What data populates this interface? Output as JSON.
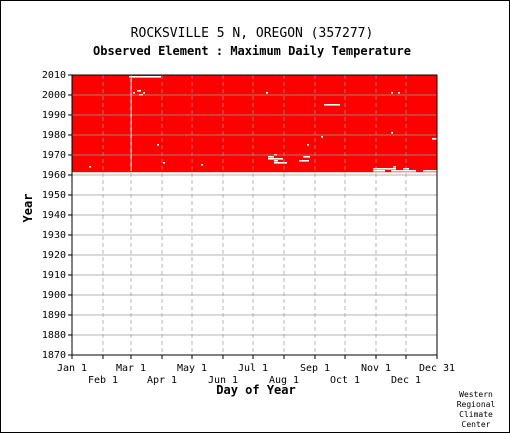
{
  "chart_data": {
    "type": "heatmap",
    "title": "ROCKSVILLE 5 N, OREGON   (357277)",
    "subtitle": "Observed Element : Maximum Daily Temperature",
    "xlabel": "Day of Year",
    "ylabel": "Year",
    "xlim": [
      1,
      366
    ],
    "ylim": [
      1870,
      2010
    ],
    "grid": true,
    "x_ticks_top_row": [
      {
        "label": "Jan 1",
        "day": 1
      },
      {
        "label": "Mar 1",
        "day": 60
      },
      {
        "label": "May 1",
        "day": 121
      },
      {
        "label": "Jul 1",
        "day": 182
      },
      {
        "label": "Sep 1",
        "day": 244
      },
      {
        "label": "Nov 1",
        "day": 305
      },
      {
        "label": "Dec 31",
        "day": 366
      }
    ],
    "x_ticks_bottom_row": [
      {
        "label": "Feb 1",
        "day": 32
      },
      {
        "label": "Apr 1",
        "day": 91
      },
      {
        "label": "Jun 1",
        "day": 152
      },
      {
        "label": "Aug 1",
        "day": 213
      },
      {
        "label": "Oct 1",
        "day": 274
      },
      {
        "label": "Dec 1",
        "day": 335
      }
    ],
    "y_ticks": [
      1870,
      1880,
      1890,
      1900,
      1910,
      1920,
      1930,
      1940,
      1950,
      1960,
      1970,
      1980,
      1990,
      2000,
      2010
    ],
    "record_color": "#ff0000",
    "record_coverage": {
      "start_year": 1962,
      "end_year": 2010,
      "start_day": 1,
      "end_day": 366
    },
    "missing_gaps": [
      {
        "year": 2009,
        "day_start": 58,
        "day_end": 90
      },
      {
        "year": 2002,
        "day_start": 66,
        "day_end": 70
      },
      {
        "year": 2001,
        "day_start": 62,
        "day_end": 64
      },
      {
        "year": 2001,
        "day_start": 72,
        "day_end": 74
      },
      {
        "year": 2000,
        "day_start": 68,
        "day_end": 72
      },
      {
        "year": 2001,
        "day_start": 195,
        "day_end": 197
      },
      {
        "year": 2001,
        "day_start": 320,
        "day_end": 322
      },
      {
        "year": 2001,
        "day_start": 327,
        "day_end": 329
      },
      {
        "year": 1995,
        "day_start": 253,
        "day_end": 269
      },
      {
        "year": 1981,
        "day_start": 320,
        "day_end": 322
      },
      {
        "year": 1979,
        "day_start": 250,
        "day_end": 252
      },
      {
        "year": 1978,
        "day_start": 361,
        "day_end": 366
      },
      {
        "year": 1975,
        "day_start": 86,
        "day_end": 88
      },
      {
        "year": 1975,
        "day_start": 236,
        "day_end": 238
      },
      {
        "year": 1970,
        "day_start": 203,
        "day_end": 206
      },
      {
        "year": 1969,
        "day_start": 197,
        "day_end": 203
      },
      {
        "year": 1969,
        "day_start": 232,
        "day_end": 239
      },
      {
        "year": 1968,
        "day_start": 197,
        "day_end": 212
      },
      {
        "year": 1967,
        "day_start": 203,
        "day_end": 207
      },
      {
        "year": 1967,
        "day_start": 228,
        "day_end": 238
      },
      {
        "year": 1966,
        "day_start": 203,
        "day_end": 216
      },
      {
        "year": 1966,
        "day_start": 92,
        "day_end": 94
      },
      {
        "year": 1965,
        "day_start": 130,
        "day_end": 132
      },
      {
        "year": 1964,
        "day_start": 18,
        "day_end": 20
      },
      {
        "year": 1964,
        "day_start": 322,
        "day_end": 325
      },
      {
        "year": 1963,
        "day_start": 302,
        "day_end": 325
      },
      {
        "year": 1963,
        "day_start": 332,
        "day_end": 338
      },
      {
        "year": 1962,
        "day_start": 302,
        "day_end": 314
      },
      {
        "year": 1962,
        "day_start": 320,
        "day_end": 345
      },
      {
        "year": 1962,
        "day_start": 352,
        "day_end": 366
      }
    ],
    "missing_day_lines": [
      {
        "day": 60,
        "year_start": 1962,
        "year_end": 2010
      }
    ]
  },
  "credit": [
    "Western",
    "Regional",
    "Climate",
    "Center"
  ]
}
